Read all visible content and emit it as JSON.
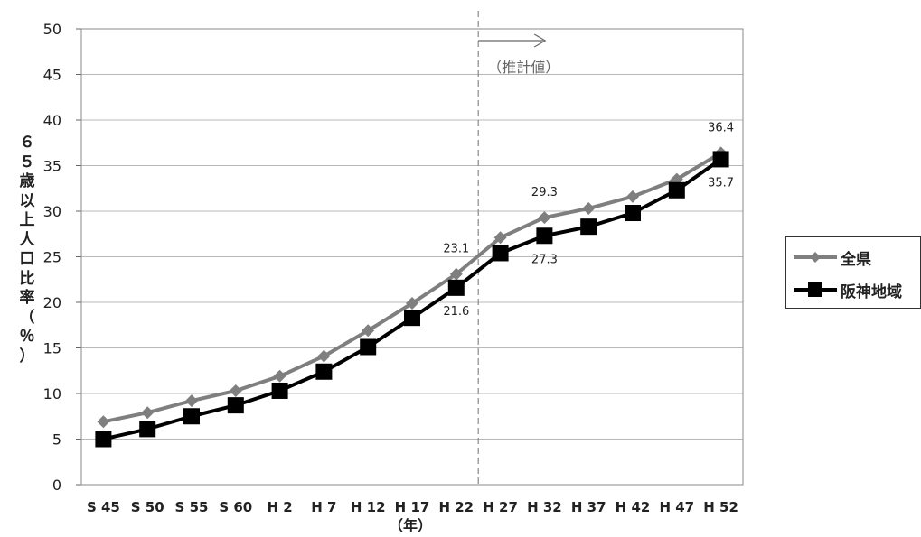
{
  "chart_data": {
    "type": "line",
    "categories": [
      "S 45",
      "S 50",
      "S 55",
      "S 60",
      "H 2",
      "H 7",
      "H 12",
      "H 17",
      "H 22",
      "H 27",
      "H 32",
      "H 37",
      "H 42",
      "H 47",
      "H 52"
    ],
    "series": [
      {
        "name": "全県",
        "color": "#7f7f7f",
        "marker": "diamond",
        "values": [
          6.9,
          7.9,
          9.2,
          10.3,
          11.9,
          14.1,
          16.9,
          19.9,
          23.1,
          27.1,
          29.3,
          30.3,
          31.6,
          33.5,
          36.4
        ]
      },
      {
        "name": "阪神地域",
        "color": "#000000",
        "marker": "square",
        "values": [
          5.0,
          6.1,
          7.5,
          8.7,
          10.3,
          12.4,
          15.1,
          18.3,
          21.6,
          25.4,
          27.3,
          28.3,
          29.8,
          32.3,
          35.7
        ]
      }
    ],
    "ylim": [
      0,
      50
    ],
    "yticks": [
      0,
      5,
      10,
      15,
      20,
      25,
      30,
      35,
      40,
      45,
      50
    ],
    "ylabel": "６５歳以上人口比率（％）",
    "xlabel": "（年）",
    "grid": "horizontal",
    "divider_after_category": "H 22",
    "projection_label": "（推計値）",
    "annotations": [
      {
        "series": 0,
        "index": 8,
        "text": "23.1",
        "position": "above"
      },
      {
        "series": 0,
        "index": 10,
        "text": "29.3",
        "position": "above"
      },
      {
        "series": 0,
        "index": 14,
        "text": "36.4",
        "position": "above"
      },
      {
        "series": 1,
        "index": 8,
        "text": "21.6",
        "position": "below"
      },
      {
        "series": 1,
        "index": 10,
        "text": "27.3",
        "position": "below"
      },
      {
        "series": 1,
        "index": 14,
        "text": "35.7",
        "position": "below"
      }
    ],
    "legend_position": "right"
  }
}
